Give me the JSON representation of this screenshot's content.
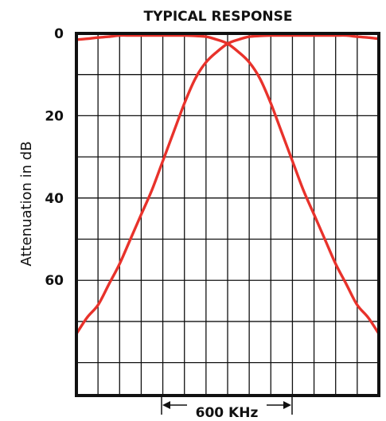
{
  "chart_data": {
    "type": "line",
    "title": "TYPICAL RESPONSE",
    "xlabel": "",
    "ylabel": "Attenuation in dB",
    "ylim": [
      0,
      88
    ],
    "y_inverted": true,
    "y_ticks": [
      "0",
      "20",
      "40",
      "60"
    ],
    "y_tick_values": [
      0,
      20,
      40,
      60
    ],
    "x_ticks": [],
    "grid": true,
    "annotation": "600 KHz",
    "colors": {
      "curve": "#e8322b",
      "grid": "#111111"
    },
    "series": [
      {
        "x": [
          0,
          0.5,
          1,
          1.5,
          2,
          2.5,
          3,
          3.5,
          4,
          4.5,
          5,
          5.5,
          6,
          6.5,
          7,
          7.5,
          8,
          8.5,
          9,
          9.5,
          10,
          10.5,
          11,
          11.5,
          12,
          12.5,
          13,
          13.5,
          14
        ],
        "y": [
          1.5,
          1.3,
          1,
          0.8,
          0.5,
          0.5,
          0.5,
          0.5,
          0.5,
          0.5,
          0.5,
          0.6,
          0.8,
          1.5,
          2.5,
          4.5,
          7,
          11,
          17,
          24,
          31,
          38,
          44,
          50,
          56,
          61,
          66,
          69,
          73
        ]
      },
      {
        "x": [
          0,
          0.5,
          1,
          1.5,
          2,
          2.5,
          3,
          3.5,
          4,
          4.5,
          5,
          5.5,
          6,
          6.5,
          7,
          7.5,
          8,
          8.5,
          9,
          9.5,
          10,
          10.5,
          11,
          11.5,
          12,
          12.5,
          13,
          13.5,
          14
        ],
        "y": [
          73,
          69,
          66,
          61,
          56,
          50,
          44,
          38,
          31,
          24,
          17,
          11,
          7,
          4.5,
          2.5,
          1.5,
          0.8,
          0.6,
          0.5,
          0.5,
          0.5,
          0.5,
          0.5,
          0.5,
          0.5,
          0.5,
          0.8,
          1,
          1.3
        ]
      }
    ]
  }
}
